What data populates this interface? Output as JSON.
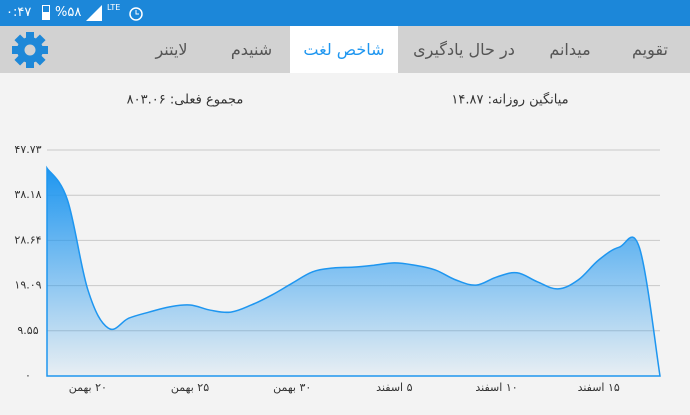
{
  "status": {
    "time": "۰:۴۷",
    "battery": "%۵۸",
    "network": "LTE"
  },
  "tabs": [
    "تقویم",
    "میدانم",
    "در حال یادگیری",
    "شاخص لغت",
    "شنیدم",
    "لایتنر"
  ],
  "summary": {
    "total": "مجموع فعلی: ۸۰۳.۰۶",
    "average": "میانگین روزانه: ۱۴.۸۷"
  },
  "chart_data": {
    "type": "area",
    "color": "#1e96f0",
    "grid": true,
    "categories": [
      null,
      null,
      "۲۰ بهمن",
      null,
      null,
      null,
      null,
      "۲۵ بهمن",
      null,
      null,
      null,
      null,
      "۳۰ بهمن",
      null,
      null,
      null,
      null,
      "۵ اسفند",
      null,
      null,
      null,
      null,
      "۱۰ اسفند",
      null,
      null,
      null,
      null,
      "۱۵ اسفند",
      null,
      null,
      null
    ],
    "values": [
      43.9,
      37.2,
      18.2,
      10.1,
      12.2,
      13.5,
      14.6,
      15.0,
      13.9,
      13.5,
      15.0,
      17.1,
      19.6,
      22.0,
      22.8,
      23.0,
      23.4,
      23.9,
      23.4,
      22.4,
      20.3,
      19.2,
      20.9,
      21.8,
      19.9,
      18.4,
      20.3,
      24.5,
      27.2,
      27.0,
      0
    ],
    "ylim": [
      0,
      47.73
    ],
    "yticks": [
      {
        "value": 0,
        "label": "۰"
      },
      {
        "value": 9.55,
        "label": "۹.۵۵"
      },
      {
        "value": 19.09,
        "label": "۱۹.۰۹"
      },
      {
        "value": 28.64,
        "label": "۲۸.۶۴"
      },
      {
        "value": 38.18,
        "label": "۳۸.۱۸"
      },
      {
        "value": 47.73,
        "label": "۴۷.۷۳"
      }
    ]
  }
}
